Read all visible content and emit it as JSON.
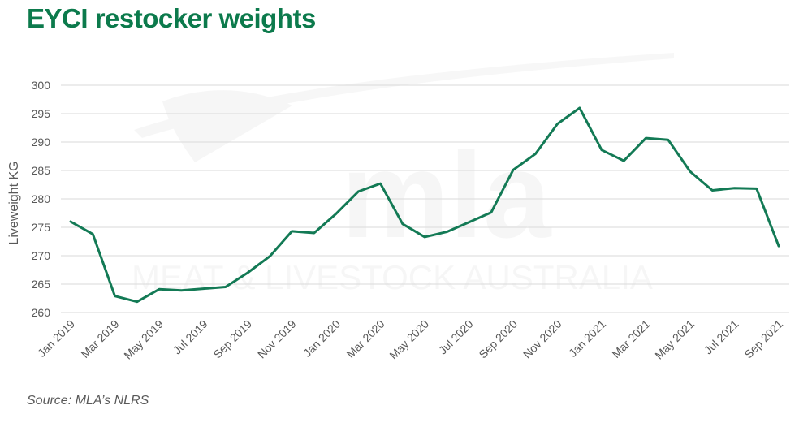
{
  "title": "EYCI restocker weights",
  "source": "Source: MLA’s NLRS",
  "watermark": {
    "logo_text": "mla",
    "text": "MEAT & LIVESTOCK AUSTRALIA"
  },
  "colors": {
    "title": "#0c7a4c",
    "line": "#137a55",
    "grid": "#d9d9d9",
    "text": "#595959"
  },
  "chart_data": {
    "type": "line",
    "ylabel": "Liveweight KG",
    "ylim": [
      260,
      300
    ],
    "yticks": [
      260,
      265,
      270,
      275,
      280,
      285,
      290,
      295,
      300
    ],
    "grid": "horizontal",
    "tick_labels": [
      "Jan 2019",
      "Mar 2019",
      "May 2019",
      "Jul 2019",
      "Sep 2019",
      "Nov 2019",
      "Jan 2020",
      "Mar 2020",
      "May 2020",
      "Jul 2020",
      "Sep 2020",
      "Nov 2020",
      "Jan 2021",
      "Mar 2021",
      "May 2021",
      "Jul 2021",
      "Sep 2021"
    ],
    "x": [
      "Jan 2019",
      "Feb 2019",
      "Mar 2019",
      "Apr 2019",
      "May 2019",
      "Jun 2019",
      "Jul 2019",
      "Aug 2019",
      "Sep 2019",
      "Oct 2019",
      "Nov 2019",
      "Dec 2019",
      "Jan 2020",
      "Feb 2020",
      "Mar 2020",
      "Apr 2020",
      "May 2020",
      "Jun 2020",
      "Jul 2020",
      "Aug 2020",
      "Sep 2020",
      "Oct 2020",
      "Nov 2020",
      "Dec 2020",
      "Jan 2021",
      "Feb 2021",
      "Mar 2021",
      "Apr 2021",
      "May 2021",
      "Jun 2021",
      "Jul 2021",
      "Aug 2021",
      "Sep 2021"
    ],
    "series": [
      {
        "values": [
          276.0,
          273.8,
          262.9,
          261.9,
          264.1,
          263.9,
          264.2,
          264.5,
          267.0,
          269.9,
          274.3,
          274.0,
          277.4,
          281.3,
          282.7,
          275.6,
          273.3,
          274.2,
          275.9,
          277.6,
          285.1,
          287.9,
          293.2,
          296.0,
          288.6,
          286.7,
          290.7,
          290.4,
          284.8,
          281.5,
          281.9,
          281.8,
          271.7
        ]
      }
    ]
  }
}
